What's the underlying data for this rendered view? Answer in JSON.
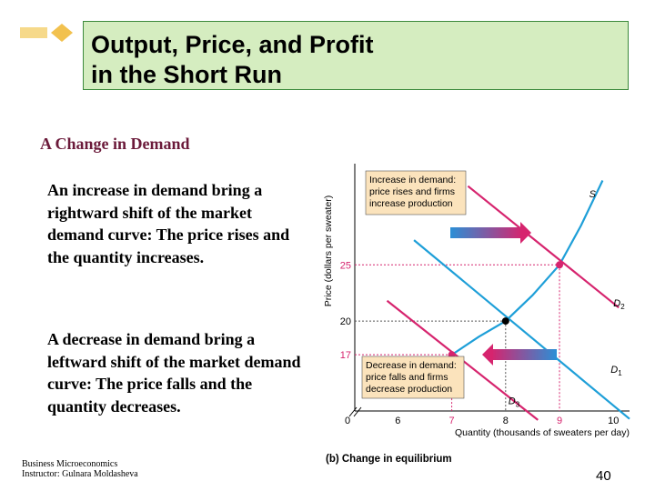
{
  "slide": {
    "title_line1": "Output, Price, and Profit",
    "title_line2": "in the Short Run",
    "subtitle": "A Change in Demand",
    "paragraph1": "An increase in demand bring a rightward shift of the market demand curve: The price rises and the quantity increases.",
    "paragraph2": "A decrease in demand bring a leftward shift of the market demand curve: The price falls and the quantity decreases.",
    "footer_line1": "Business Microeconomics",
    "footer_line2": "Instructor: Gulnara Moldasheva",
    "page_number": "40",
    "logo_icon": "diamond-arrow-icon",
    "colors": {
      "title_bg": "#d5edc0",
      "subtitle": "#6b1a3a",
      "demand_increase": "#d6246e",
      "demand_decrease": "#d6246e",
      "supply": "#1e9fd8",
      "callout_bg": "#fbe3bc"
    }
  },
  "chart_data": {
    "type": "line",
    "ylabel": "Price (dollars per sweater)",
    "xlabel": "Quantity (thousands of sweaters per day)",
    "caption": "(b) Change in equilibrium",
    "x_ticks": [
      "0",
      "6",
      "7",
      "8",
      "9",
      "10"
    ],
    "y_ticks": [
      "17",
      "20",
      "25"
    ],
    "xlim": [
      5.2,
      10.3
    ],
    "ylim": [
      12,
      34
    ],
    "series": [
      {
        "name": "S",
        "x": [
          6.2,
          7.0,
          7.5,
          8.0,
          8.5,
          9.0,
          9.4,
          9.8
        ],
        "y": [
          13.5,
          17.0,
          18.6,
          20.0,
          22.3,
          25.0,
          28.5,
          32.5
        ]
      },
      {
        "name": "D1",
        "x": [
          6.3,
          10.3
        ],
        "y": [
          27.2,
          11.3
        ]
      },
      {
        "name": "D2",
        "x": [
          7.3,
          10.1
        ],
        "y": [
          32.0,
          21.2
        ]
      },
      {
        "name": "D3",
        "x": [
          5.8,
          8.6
        ],
        "y": [
          21.8,
          11.2
        ]
      }
    ],
    "equilibria": [
      {
        "x": 8,
        "y": 20
      },
      {
        "x": 9,
        "y": 25
      },
      {
        "x": 7,
        "y": 17
      }
    ],
    "annotations": [
      {
        "text_lines": [
          "Increase in demand:",
          "price rises and firms",
          "increase production"
        ]
      },
      {
        "text_lines": [
          "Decrease in demand:",
          "price falls and firms",
          "decrease production"
        ]
      }
    ]
  }
}
